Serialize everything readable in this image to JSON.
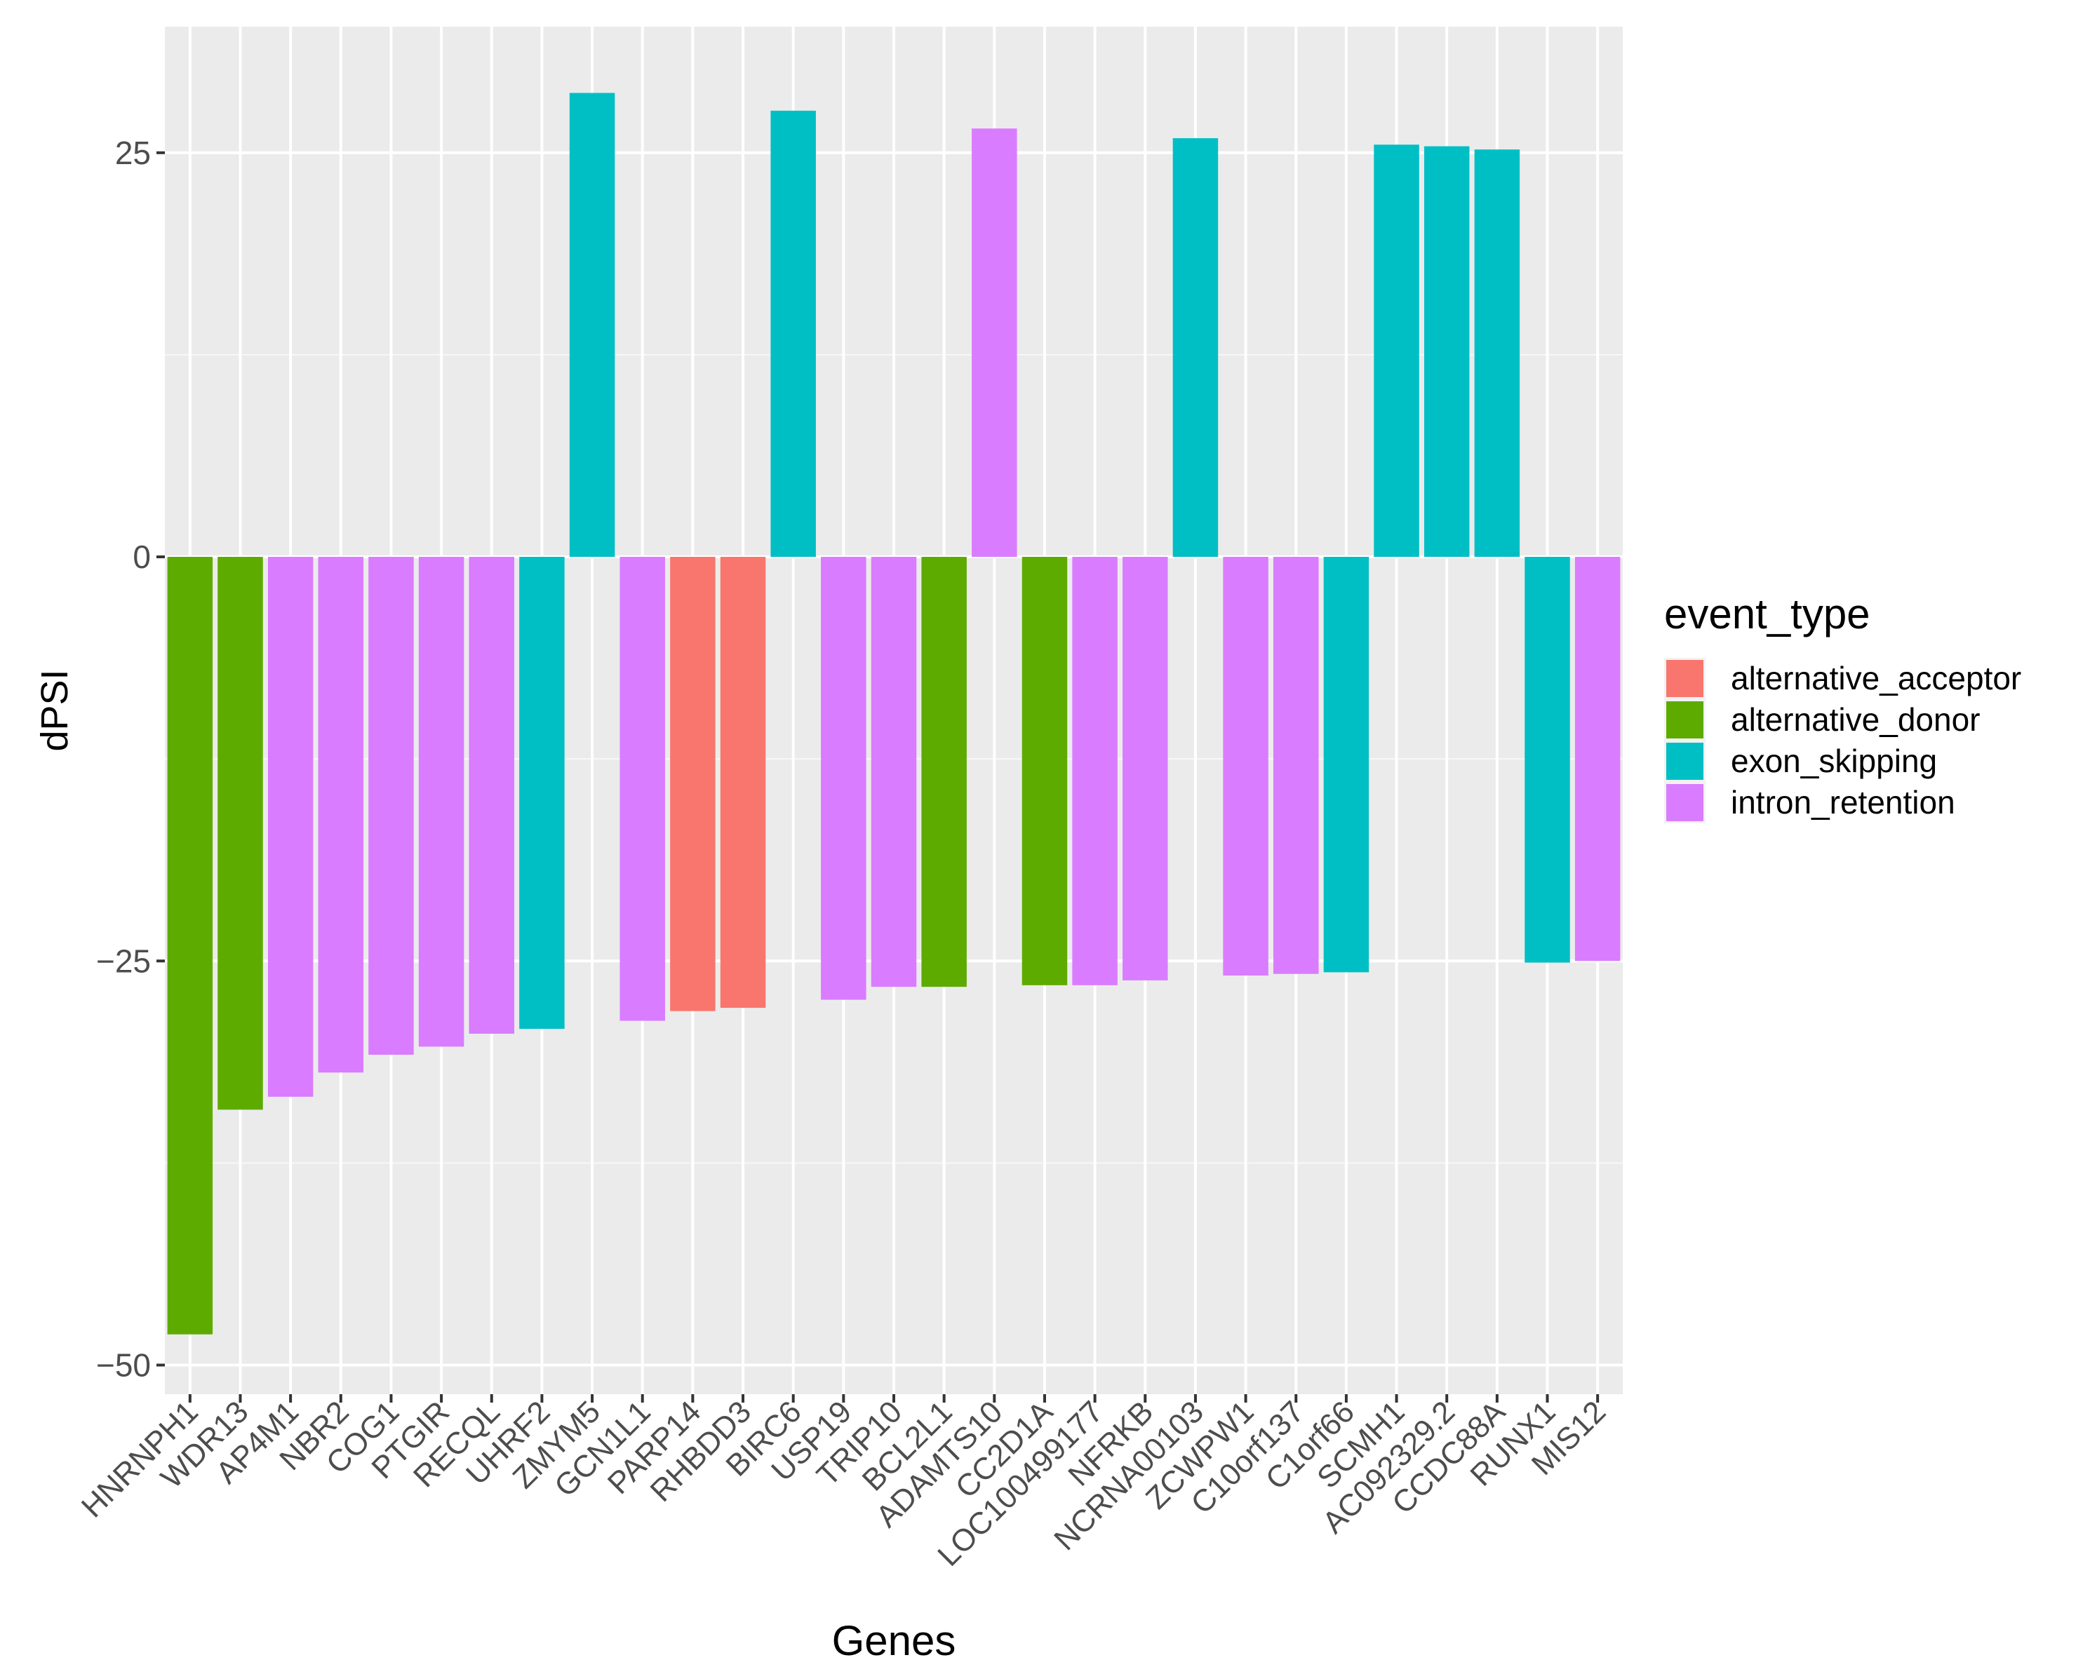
{
  "chart_data": {
    "type": "bar",
    "xlabel": "Genes",
    "ylabel": "dPSI",
    "ylim": [
      -51.8,
      32.8
    ],
    "y_ticks": [
      -50,
      -25,
      0,
      25
    ],
    "y_tick_labels": [
      "−50",
      "−25",
      "0",
      "25"
    ],
    "grid": true,
    "legend_title": "event_type",
    "legend_position": "right",
    "series_colors": {
      "alternative_acceptor": "#F8766D",
      "alternative_donor": "#5EAB00",
      "exon_skipping": "#00BFC4",
      "intron_retention": "#D97CFF"
    },
    "legend": [
      "alternative_acceptor",
      "alternative_donor",
      "exon_skipping",
      "intron_retention"
    ],
    "categories": [
      "HNRNPH1",
      "WDR13",
      "AP4M1",
      "NBR2",
      "COG1",
      "PTGIR",
      "RECQL",
      "UHRF2",
      "ZMYM5",
      "GCN1L1",
      "PARP14",
      "RHBDD3",
      "BIRC6",
      "USP19",
      "TRIP10",
      "BCL2L1",
      "ADAMTS10",
      "CC2D1A",
      "LOC100499177",
      "NFRKB",
      "NCRNA00103",
      "ZCWPW1",
      "C10orf137",
      "C1orf66",
      "SCMH1",
      "AC092329.2",
      "CCDC88A",
      "RUNX1",
      "MIS12"
    ],
    "values": [
      -48.1,
      -34.2,
      -33.4,
      -31.9,
      -30.8,
      -30.3,
      -29.5,
      -29.2,
      28.7,
      -28.7,
      -28.1,
      -27.9,
      27.6,
      -27.4,
      -26.6,
      -26.6,
      26.5,
      -26.5,
      -26.5,
      -26.2,
      25.9,
      -25.9,
      -25.8,
      -25.7,
      25.5,
      25.4,
      25.2,
      -25.1,
      -25.0
    ],
    "event_types": [
      "alternative_donor",
      "alternative_donor",
      "intron_retention",
      "intron_retention",
      "intron_retention",
      "intron_retention",
      "intron_retention",
      "exon_skipping",
      "exon_skipping",
      "intron_retention",
      "alternative_acceptor",
      "alternative_acceptor",
      "exon_skipping",
      "intron_retention",
      "intron_retention",
      "alternative_donor",
      "intron_retention",
      "alternative_donor",
      "intron_retention",
      "intron_retention",
      "exon_skipping",
      "intron_retention",
      "intron_retention",
      "exon_skipping",
      "exon_skipping",
      "exon_skipping",
      "exon_skipping",
      "exon_skipping",
      "intron_retention"
    ]
  }
}
